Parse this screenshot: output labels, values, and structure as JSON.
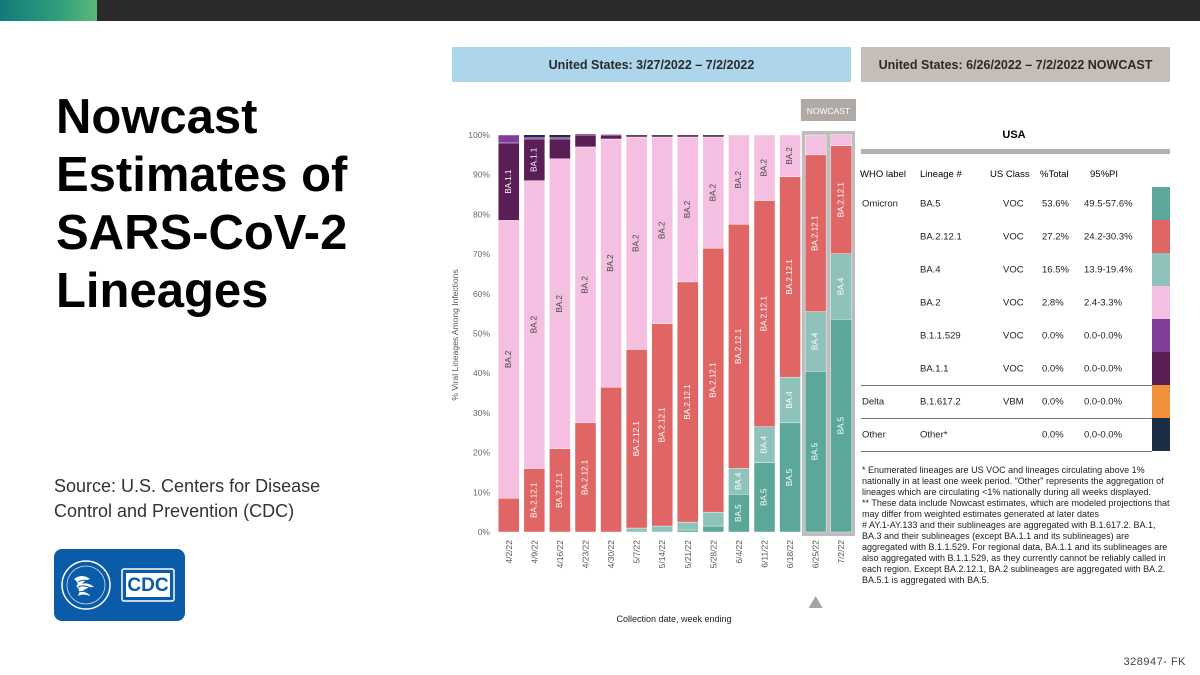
{
  "slide": {
    "title_lines": [
      "Nowcast",
      "Estimates of",
      "SARS-CoV-2",
      "Lineages"
    ],
    "source": "Source: U.S. Centers for Disease Control and Prevention (CDC)",
    "logo_text": "CDC",
    "footer_code": "328947- FK"
  },
  "banners": {
    "left": "United States: 3/27/2022 – 7/2/2022",
    "right": "United States: 6/26/2022 – 7/2/2022 NOWCAST"
  },
  "colors": {
    "BA.5": "#5ba89a",
    "BA.2.12.1": "#e06666",
    "BA.4": "#8ec2bb",
    "BA.2": "#f4bfe0",
    "B.1.1.529": "#7f3f98",
    "BA.1.1": "#5a1d56",
    "B.1.617.2": "#f0913a",
    "Other": "#1b2e45",
    "banner_left": "#add6ec",
    "banner_right": "#c6bdb8"
  },
  "chart_data": {
    "type": "bar",
    "stacked": true,
    "nowcast_label": "NOWCAST",
    "xlabel": "Collection date, week ending",
    "ylabel": "% Viral Lineages Among Infections",
    "ylim": [
      0,
      100
    ],
    "yticks": [
      "0%",
      "10%",
      "20%",
      "30%",
      "40%",
      "50%",
      "60%",
      "70%",
      "80%",
      "90%",
      "100%"
    ],
    "categories": [
      "4/2/22",
      "4/9/22",
      "4/16/22",
      "4/23/22",
      "4/30/22",
      "5/7/22",
      "5/14/22",
      "5/21/22",
      "5/28/22",
      "6/4/22",
      "6/11/22",
      "6/18/22",
      "6/25/22",
      "7/2/22"
    ],
    "nowcast_categories": [
      "6/25/22",
      "7/2/22"
    ],
    "series": [
      {
        "name": "BA.5",
        "values": [
          0,
          0,
          0,
          0,
          0,
          0,
          0,
          0.5,
          1.5,
          9.5,
          17.5,
          27.5,
          40.5,
          53.6
        ]
      },
      {
        "name": "BA.4",
        "values": [
          0,
          0,
          0,
          0,
          0,
          1,
          1.5,
          2,
          3.5,
          6.5,
          9,
          11.5,
          15,
          16.5
        ]
      },
      {
        "name": "BA.2.12.1",
        "values": [
          8.5,
          16,
          21,
          27.5,
          36.5,
          45,
          51,
          60.5,
          66.5,
          61.5,
          57,
          50.5,
          39.5,
          27.2
        ]
      },
      {
        "name": "BA.2",
        "values": [
          70,
          72.5,
          73,
          69.5,
          62.5,
          53.5,
          47,
          36.5,
          28,
          22.5,
          16.5,
          10.5,
          5,
          2.8
        ]
      },
      {
        "name": "BA.1.1",
        "values": [
          19.5,
          10.5,
          5,
          3,
          1,
          0.3,
          0.3,
          0.3,
          0.3,
          0,
          0,
          0,
          0,
          0
        ]
      },
      {
        "name": "B.1.1.529",
        "values": [
          2,
          0.5,
          0.5,
          0.3,
          0.2,
          0,
          0,
          0,
          0,
          0,
          0,
          0,
          0,
          0
        ]
      }
    ],
    "bar_labels": [
      [
        "BA.2",
        "BA.1.1"
      ],
      [
        "BA.2.12.1",
        "BA.2",
        "BA.1.1"
      ],
      [
        "BA.2.12.1",
        "BA.2"
      ],
      [
        "BA.2.12.1",
        "BA.2"
      ],
      [
        "BA.2"
      ],
      [
        "BA.2.12.1",
        "BA.2"
      ],
      [
        "BA.2.12.1",
        "BA.2"
      ],
      [
        "BA.2.12.1",
        "BA.2"
      ],
      [
        "BA.2.12.1",
        "BA.2"
      ],
      [
        "BA.5",
        "BA.4",
        "BA.2.12.1",
        "BA.2"
      ],
      [
        "BA.5",
        "BA.4",
        "BA.2.12.1",
        "BA.2"
      ],
      [
        "BA.5",
        "BA.4",
        "BA.2.12.1",
        "BA.2"
      ],
      [
        "BA.5",
        "BA.4",
        "BA.2.12.1"
      ],
      [
        "BA.5",
        "BA.4",
        "BA.2.12.1"
      ]
    ]
  },
  "table": {
    "region": "USA",
    "headers": [
      "WHO label",
      "Lineage #",
      "US Class",
      "%Total",
      "95%PI"
    ],
    "rows": [
      {
        "who": "Omicron",
        "lineage": "BA.5",
        "class": "VOC",
        "total": "53.6%",
        "pi": "49.5-57.6%",
        "color": "#5ba89a"
      },
      {
        "who": "",
        "lineage": "BA.2.12.1",
        "class": "VOC",
        "total": "27.2%",
        "pi": "24.2-30.3%",
        "color": "#e06666"
      },
      {
        "who": "",
        "lineage": "BA.4",
        "class": "VOC",
        "total": "16.5%",
        "pi": "13.9-19.4%",
        "color": "#8ec2bb"
      },
      {
        "who": "",
        "lineage": "BA.2",
        "class": "VOC",
        "total": "2.8%",
        "pi": "2.4-3.3%",
        "color": "#f4bfe0"
      },
      {
        "who": "",
        "lineage": "B.1.1.529",
        "class": "VOC",
        "total": "0.0%",
        "pi": "0.0-0.0%",
        "color": "#7f3f98"
      },
      {
        "who": "",
        "lineage": "BA.1.1",
        "class": "VOC",
        "total": "0.0%",
        "pi": "0.0-0.0%",
        "color": "#5a1d56"
      },
      {
        "who": "Delta",
        "lineage": "B.1.617.2",
        "class": "VBM",
        "total": "0.0%",
        "pi": "0.0-0.0%",
        "color": "#f0913a"
      },
      {
        "who": "Other",
        "lineage": "Other*",
        "class": "",
        "total": "0.0%",
        "pi": "0.0-0.0%",
        "color": "#1b2e45"
      }
    ]
  },
  "footnotes": [
    "*     Enumerated lineages are US VOC and lineages circulating above 1% nationally in at least one week period. \"Other\" represents the aggregation of lineages which are circulating <1% nationally during all weeks displayed.",
    "**    These data include Nowcast estimates, which are modeled projections that may differ from weighted estimates generated at later dates",
    "#     AY.1-AY.133 and their sublineages are aggregated with B.1.617.2. BA.1, BA.3 and their sublineages (except BA.1.1 and its sublineages) are aggregated with B.1.1.529. For regional data, BA.1.1 and its sublineages are also aggregated with B.1.1.529, as they currently cannot be reliably called in each region. Except BA.2.12.1, BA.2 sublineages are aggregated with BA.2. BA.5.1 is aggregated with BA.5."
  ]
}
